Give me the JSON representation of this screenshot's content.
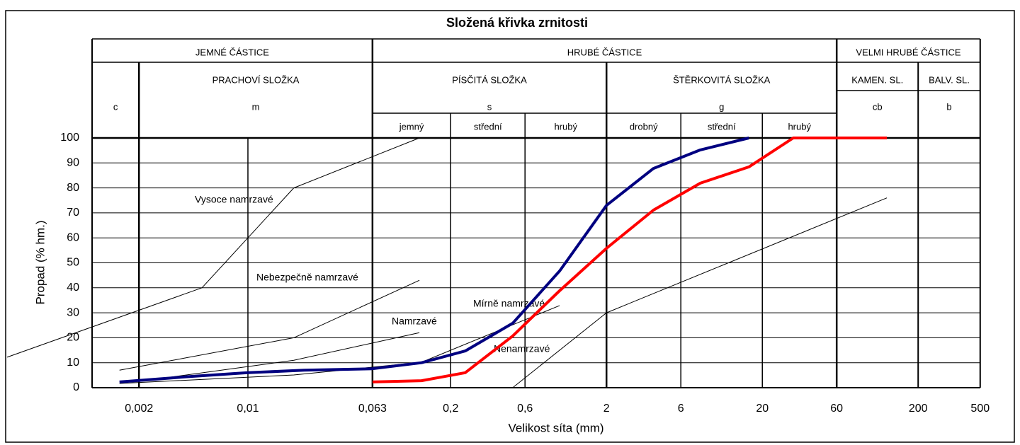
{
  "chart_data": {
    "type": "line",
    "title": "Složená křivka zrnitosti",
    "x_label": "Velikost síta (mm)",
    "y_label": "Propad (% hm.)",
    "log_x": true,
    "grid": true,
    "xlim": [
      0.001,
      500
    ],
    "ylim": [
      0,
      100
    ],
    "xticks": [
      {
        "value": 0.002,
        "label": "0,002"
      },
      {
        "value": 0.01,
        "label": "0,01"
      },
      {
        "value": 0.063,
        "label": "0,063"
      },
      {
        "value": 0.2,
        "label": "0,2"
      },
      {
        "value": 0.6,
        "label": "0,6"
      },
      2,
      6,
      20,
      60,
      200,
      500
    ],
    "yticks": [
      0,
      10,
      20,
      30,
      40,
      50,
      60,
      70,
      80,
      90,
      100
    ],
    "header": [
      [
        "JEMNÉ ČÁSTICE",
        "HRUBÉ ČÁSTICE",
        "VELMI HRUBÉ ČÁSTICE"
      ],
      [
        "PRACHOVÍ SLOŽKA",
        "PÍSČITÁ SLOŽKA",
        "ŠTĚRKOVITÁ SLOŽKA",
        "KAMEN. SL.",
        "BALV. SL."
      ],
      [
        "c",
        "m",
        "s",
        "g",
        "cb",
        "b"
      ],
      [
        "jemný",
        "střední",
        "hrubý",
        "drobný",
        "střední",
        "hrubý"
      ]
    ],
    "series": [
      {
        "color": "#000080",
        "x": [
          0.0015,
          0.0043,
          0.01,
          0.023,
          0.063,
          0.13,
          0.248,
          0.5,
          1.0,
          2,
          4,
          8,
          16.4
        ],
        "values": [
          2.3,
          4.5,
          6,
          7,
          7.6,
          10,
          14.7,
          25.8,
          46.7,
          73,
          87.8,
          95.2,
          100
        ]
      },
      {
        "color": "#ff0000",
        "x": [
          0.063,
          0.13,
          0.248,
          0.5,
          1.0,
          2,
          4,
          8,
          16.4,
          31.6,
          126
        ],
        "values": [
          2.3,
          2.8,
          6,
          20.7,
          38.8,
          55.8,
          71.1,
          81.9,
          88.4,
          100,
          100
        ]
      }
    ],
    "boundaries": [
      {
        "label": "Vysoce namrzavé",
        "color": "#000000",
        "x": [
          0.000285,
          0.00507,
          0.0197,
          0.126
        ],
        "values": [
          12.2,
          40,
          80,
          100
        ]
      },
      {
        "label": "Nebezpečně namrzavé",
        "color": "#000000",
        "x": [
          0.0015,
          0.0197,
          0.126
        ],
        "values": [
          7,
          20,
          43
        ]
      },
      {
        "label": "Namrzavé",
        "color": "#000000",
        "x": [
          0.002,
          0.0197,
          0.126
        ],
        "values": [
          2.5,
          11,
          22
        ]
      },
      {
        "label": "Mírně namrzavé",
        "color": "#000000",
        "x": [
          0.0015,
          0.0197,
          0.13,
          1.0
        ],
        "values": [
          1.7,
          5.1,
          10.2,
          32.9
        ]
      },
      {
        "label": "Nenamrzavé",
        "color": "#000000",
        "x": [
          0.5,
          2,
          126
        ],
        "values": [
          0,
          30,
          76
        ]
      }
    ]
  }
}
